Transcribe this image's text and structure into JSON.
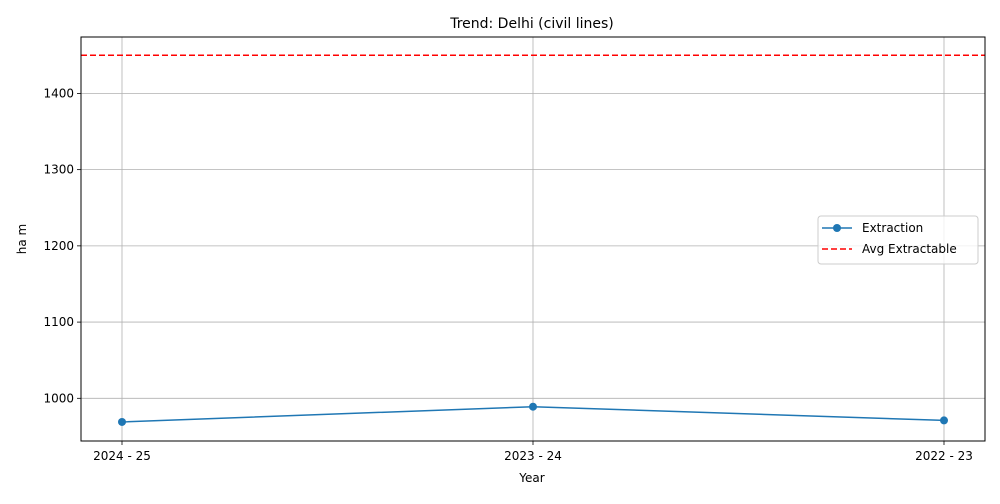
{
  "chart_data": {
    "type": "line",
    "title": "Trend: Delhi (civil lines)",
    "xlabel": "Year",
    "ylabel": "ha m",
    "categories": [
      "2024 - 25",
      "2023 - 24",
      "2022 - 23"
    ],
    "ylim": [
      944,
      1474
    ],
    "yticks": [
      1000,
      1100,
      1200,
      1300,
      1400
    ],
    "grid": true,
    "legend_position": "center-right",
    "series": [
      {
        "name": "Extraction",
        "values": [
          969,
          989,
          971
        ],
        "color": "#1f77b4",
        "style": "solid",
        "marker": "circle"
      }
    ],
    "reference_lines": [
      {
        "name": "Avg Extractable",
        "value": 1450,
        "color": "#ff0000",
        "style": "dashed"
      }
    ]
  }
}
